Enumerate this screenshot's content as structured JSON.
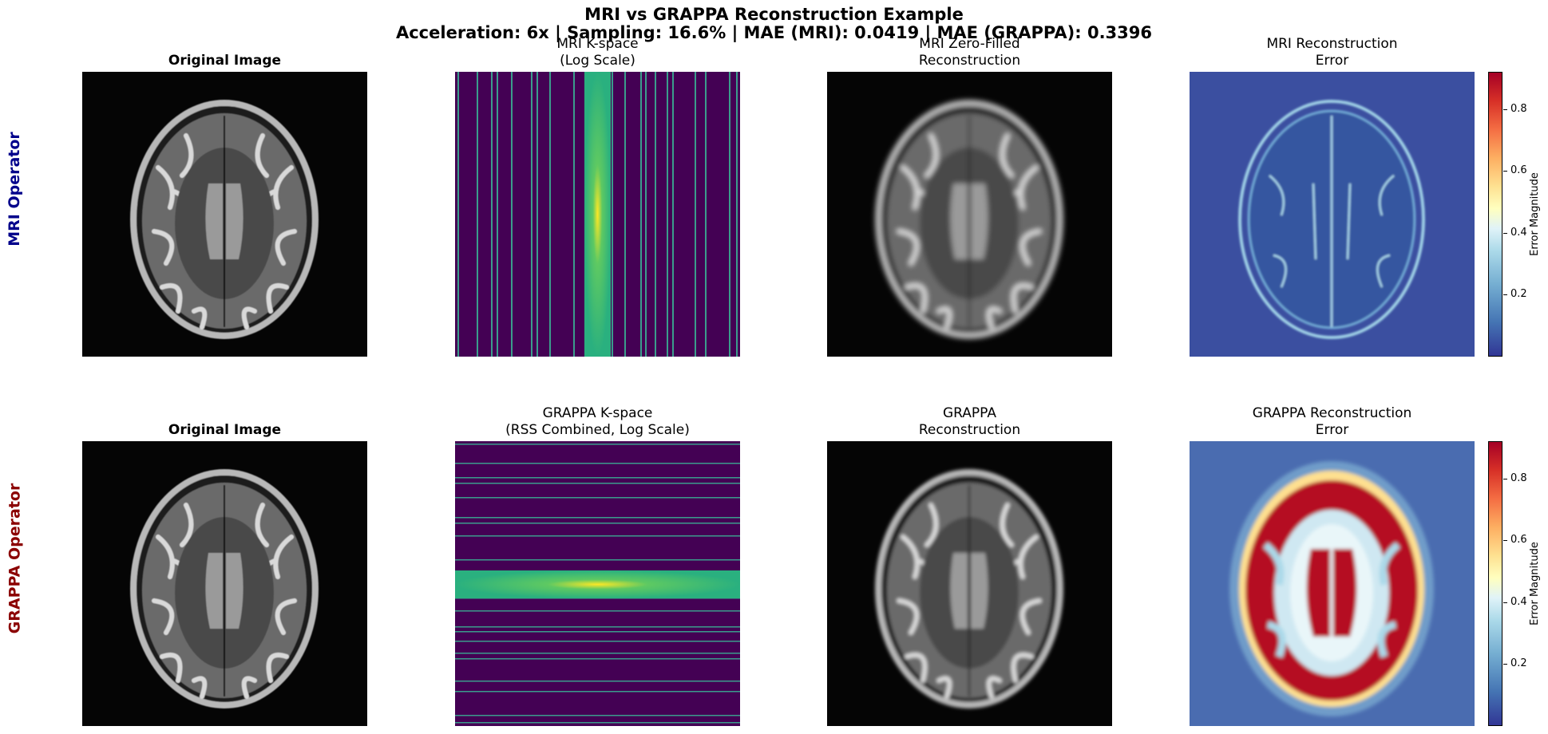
{
  "figure": {
    "title_line_1": "MRI vs GRAPPA Reconstruction Example",
    "title_line_2": "Acceleration: 6x | Sampling: 16.6% | MAE (MRI): 0.0419 | MAE (GRAPPA): 0.3396"
  },
  "rows": [
    {
      "label": "MRI Operator",
      "color": "#00008b",
      "panels": [
        {
          "title_lines": [
            "Original Image"
          ],
          "bold": true,
          "kind": "brain-original"
        },
        {
          "title_lines": [
            "MRI K-space",
            "(Log Scale)"
          ],
          "bold": false,
          "kind": "kspace-vertical"
        },
        {
          "title_lines": [
            "MRI Zero-Filled",
            "Reconstruction"
          ],
          "bold": false,
          "kind": "brain-blurred"
        },
        {
          "title_lines": [
            "MRI Reconstruction",
            "Error"
          ],
          "bold": false,
          "kind": "error-low"
        }
      ],
      "colorbar": {
        "label": "Error Magnitude",
        "ticks": [
          "0.8",
          "0.6",
          "0.4",
          "0.2"
        ],
        "tick_values": [
          0.8,
          0.6,
          0.4,
          0.2
        ],
        "min": 0.0,
        "max": 0.92
      }
    },
    {
      "label": "GRAPPA Operator",
      "color": "#8b0000",
      "panels": [
        {
          "title_lines": [
            "Original Image"
          ],
          "bold": true,
          "kind": "brain-original"
        },
        {
          "title_lines": [
            "GRAPPA K-space",
            "(RSS Combined, Log Scale)"
          ],
          "bold": false,
          "kind": "kspace-horizontal"
        },
        {
          "title_lines": [
            "GRAPPA",
            "Reconstruction"
          ],
          "bold": false,
          "kind": "brain-smooth"
        },
        {
          "title_lines": [
            "GRAPPA Reconstruction",
            "Error"
          ],
          "bold": false,
          "kind": "error-high"
        }
      ],
      "colorbar": {
        "label": "Error Magnitude",
        "ticks": [
          "0.8",
          "0.6",
          "0.4",
          "0.2"
        ],
        "tick_values": [
          0.8,
          0.6,
          0.4,
          0.2
        ],
        "min": 0.0,
        "max": 0.92
      }
    }
  ],
  "colors": {
    "kspace_background": "#440154",
    "kspace_center": "#2ab07f",
    "kspace_line": "#3b9c8c",
    "error_low_bg": "#3b4fa0"
  }
}
